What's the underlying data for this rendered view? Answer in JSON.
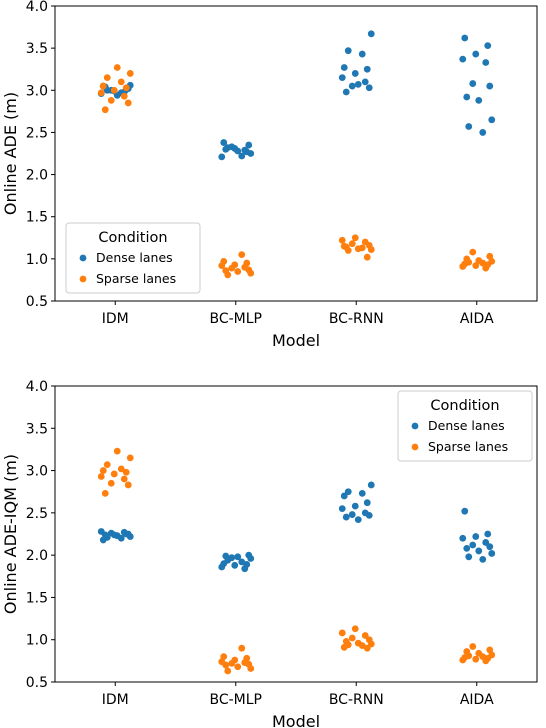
{
  "colors": {
    "dense": "#1f77b4",
    "sparse": "#ff7f0e"
  },
  "chart_data": [
    {
      "type": "scatter",
      "subtype": "strip",
      "xlabel": "Model",
      "ylabel": "Online ADE (m)",
      "categories": [
        "IDM",
        "BC-MLP",
        "BC-RNN",
        "AIDA"
      ],
      "ylim": [
        0.5,
        4.0
      ],
      "yticks": [
        "0.5",
        "1.0",
        "1.5",
        "2.0",
        "2.5",
        "3.0",
        "3.5",
        "4.0"
      ],
      "legend": {
        "title": "Condition",
        "placement": "lower-left",
        "entries": [
          "Dense lanes",
          "Sparse lanes"
        ]
      },
      "series": [
        {
          "name": "Dense lanes",
          "values": [
            [
              2.96,
              2.98,
              3.0,
              3.02,
              3.04,
              2.94,
              3.06,
              3.0,
              2.97,
              3.05,
              3.01,
              2.99
            ],
            [
              2.35,
              2.3,
              2.28,
              2.25,
              2.32,
              2.22,
              2.38,
              2.27,
              2.31,
              2.21,
              2.29,
              2.33
            ],
            [
              3.67,
              3.47,
              3.43,
              3.27,
              3.25,
              3.2,
              3.15,
              3.1,
              3.05,
              3.03,
              2.98,
              3.07
            ],
            [
              3.62,
              3.53,
              3.43,
              3.37,
              3.33,
              3.08,
              3.05,
              2.92,
              2.88,
              2.65,
              2.57,
              2.5
            ]
          ]
        },
        {
          "name": "Sparse lanes",
          "values": [
            [
              3.27,
              3.2,
              3.15,
              3.1,
              3.05,
              3.03,
              3.0,
              2.97,
              2.93,
              2.88,
              2.85,
              2.77
            ],
            [
              1.05,
              0.97,
              0.95,
              0.93,
              0.92,
              0.9,
              0.89,
              0.87,
              0.86,
              0.85,
              0.83,
              0.81
            ],
            [
              1.25,
              1.22,
              1.2,
              1.18,
              1.16,
              1.14,
              1.12,
              1.11,
              1.1,
              1.13,
              1.15,
              1.02
            ],
            [
              1.08,
              1.03,
              1.0,
              0.98,
              0.97,
              0.96,
              0.95,
              0.94,
              0.93,
              0.92,
              0.91,
              0.89
            ]
          ]
        }
      ]
    },
    {
      "type": "scatter",
      "subtype": "strip",
      "xlabel": "Model",
      "ylabel": "Online ADE-IQM (m)",
      "categories": [
        "IDM",
        "BC-MLP",
        "BC-RNN",
        "AIDA"
      ],
      "ylim": [
        0.5,
        4.0
      ],
      "yticks": [
        "0.5",
        "1.0",
        "1.5",
        "2.0",
        "2.5",
        "3.0",
        "3.5",
        "4.0"
      ],
      "legend": {
        "title": "Condition",
        "placement": "upper-right",
        "entries": [
          "Dense lanes",
          "Sparse lanes"
        ]
      },
      "series": [
        {
          "name": "Dense lanes",
          "values": [
            [
              2.28,
              2.27,
              2.26,
              2.25,
              2.24,
              2.23,
              2.22,
              2.21,
              2.2,
              2.18,
              2.25,
              2.24
            ],
            [
              2.0,
              1.99,
              1.98,
              1.96,
              1.94,
              1.92,
              1.9,
              1.89,
              1.88,
              1.86,
              1.84,
              1.97
            ],
            [
              2.83,
              2.75,
              2.73,
              2.7,
              2.62,
              2.58,
              2.55,
              2.5,
              2.48,
              2.47,
              2.45,
              2.42
            ],
            [
              2.52,
              2.25,
              2.22,
              2.2,
              2.15,
              2.12,
              2.1,
              2.08,
              2.05,
              2.02,
              1.98,
              1.95
            ]
          ]
        },
        {
          "name": "Sparse lanes",
          "values": [
            [
              3.23,
              3.15,
              3.07,
              3.02,
              3.0,
              2.98,
              2.96,
              2.93,
              2.9,
              2.85,
              2.83,
              2.73
            ],
            [
              0.9,
              0.8,
              0.78,
              0.76,
              0.74,
              0.73,
              0.72,
              0.71,
              0.7,
              0.68,
              0.66,
              0.63
            ],
            [
              1.13,
              1.08,
              1.05,
              1.02,
              1.0,
              0.98,
              0.96,
              0.95,
              0.94,
              0.93,
              0.91,
              0.9
            ],
            [
              0.92,
              0.88,
              0.86,
              0.84,
              0.82,
              0.81,
              0.8,
              0.79,
              0.78,
              0.77,
              0.76,
              0.75
            ]
          ]
        }
      ]
    }
  ]
}
